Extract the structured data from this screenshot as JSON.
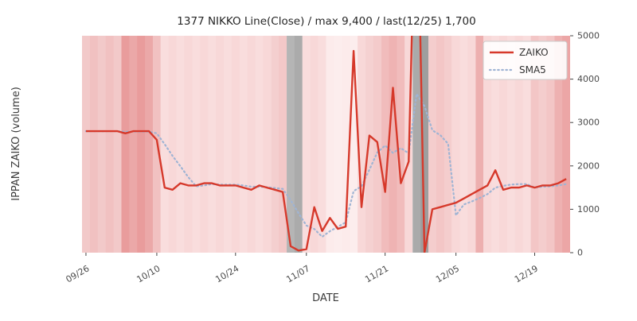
{
  "chart_data": {
    "type": "line",
    "title": "1377 NIKKO Line(Close) / max 9,400 / last(12/25) 1,700",
    "xlabel": "DATE",
    "ylabel": "IPPAN ZAIKO (volume)",
    "ylim": [
      0,
      5000
    ],
    "yticks": [
      0,
      1000,
      2000,
      3000,
      4000,
      5000
    ],
    "xticks": [
      "09/26",
      "10/10",
      "10/24",
      "11/07",
      "11/21",
      "12/05",
      "12/19"
    ],
    "grid": false,
    "legend_position": "upper right",
    "stats": {
      "max": "9,400",
      "last_date": "12/25",
      "last_value": "1,700"
    },
    "dates": [
      "09/26",
      "09/27",
      "09/28",
      "09/29",
      "10/02",
      "10/03",
      "10/04",
      "10/05",
      "10/06",
      "10/10",
      "10/11",
      "10/12",
      "10/13",
      "10/16",
      "10/17",
      "10/18",
      "10/19",
      "10/20",
      "10/23",
      "10/24",
      "10/25",
      "10/26",
      "10/27",
      "10/30",
      "10/31",
      "11/01",
      "11/02",
      "11/06",
      "11/07",
      "11/08",
      "11/09",
      "11/10",
      "11/13",
      "11/14",
      "11/15",
      "11/16",
      "11/17",
      "11/20",
      "11/21",
      "11/22",
      "11/24",
      "11/27",
      "11/28",
      "11/29",
      "11/30",
      "12/01",
      "12/04",
      "12/05",
      "12/06",
      "12/07",
      "12/08",
      "12/11",
      "12/12",
      "12/13",
      "12/14",
      "12/15",
      "12/18",
      "12/19",
      "12/20",
      "12/21",
      "12/22",
      "12/25"
    ],
    "series": [
      {
        "name": "ZAIKO",
        "color": "#d6392b",
        "style": "solid",
        "values": [
          2800,
          2800,
          2800,
          2800,
          2800,
          2750,
          2800,
          2800,
          2800,
          2600,
          1500,
          1450,
          1600,
          1550,
          1550,
          1600,
          1600,
          1550,
          1550,
          1550,
          1500,
          1450,
          1550,
          1500,
          1450,
          1400,
          150,
          50,
          80,
          1050,
          500,
          800,
          550,
          600,
          4650,
          1050,
          2700,
          2550,
          1400,
          3800,
          1600,
          2100,
          9400,
          0,
          1000,
          1050,
          1100,
          1150,
          1250,
          1350,
          1450,
          1550,
          1900,
          1450,
          1500,
          1500,
          1550,
          1500,
          1550,
          1550,
          1600,
          1700
        ]
      },
      {
        "name": "SMA5",
        "color": "#9fb4d4",
        "style": "dotted",
        "derived_from": "ZAIKO",
        "window": 5
      }
    ],
    "background_bands": [
      {
        "from": 0,
        "to": 4,
        "color": "#f1c1c1"
      },
      {
        "from": 5,
        "to": 8,
        "color": "#e99c9c"
      },
      {
        "from": 9,
        "to": 9,
        "color": "#f1c1c1"
      },
      {
        "from": 10,
        "to": 23,
        "color": "#f8d8d8"
      },
      {
        "from": 24,
        "to": 25,
        "color": "#f3c8c8"
      },
      {
        "from": 26,
        "to": 27,
        "color": "#ababab"
      },
      {
        "from": 28,
        "to": 30,
        "color": "#f8d8d8"
      },
      {
        "from": 31,
        "to": 34,
        "color": "#fcebeb"
      },
      {
        "from": 35,
        "to": 35,
        "color": "#f8d8d8"
      },
      {
        "from": 36,
        "to": 37,
        "color": "#f4cbcb"
      },
      {
        "from": 38,
        "to": 40,
        "color": "#efb3b3"
      },
      {
        "from": 41,
        "to": 41,
        "color": "#f8d8d8"
      },
      {
        "from": 42,
        "to": 43,
        "color": "#9e9e9e"
      },
      {
        "from": 44,
        "to": 46,
        "color": "#f3c6c6"
      },
      {
        "from": 47,
        "to": 49,
        "color": "#f8d8d8"
      },
      {
        "from": 50,
        "to": 50,
        "color": "#eba4a4"
      },
      {
        "from": 51,
        "to": 56,
        "color": "#f8d8d8"
      },
      {
        "from": 57,
        "to": 59,
        "color": "#f3c6c6"
      },
      {
        "from": 60,
        "to": 61,
        "color": "#eca6a6"
      }
    ]
  }
}
